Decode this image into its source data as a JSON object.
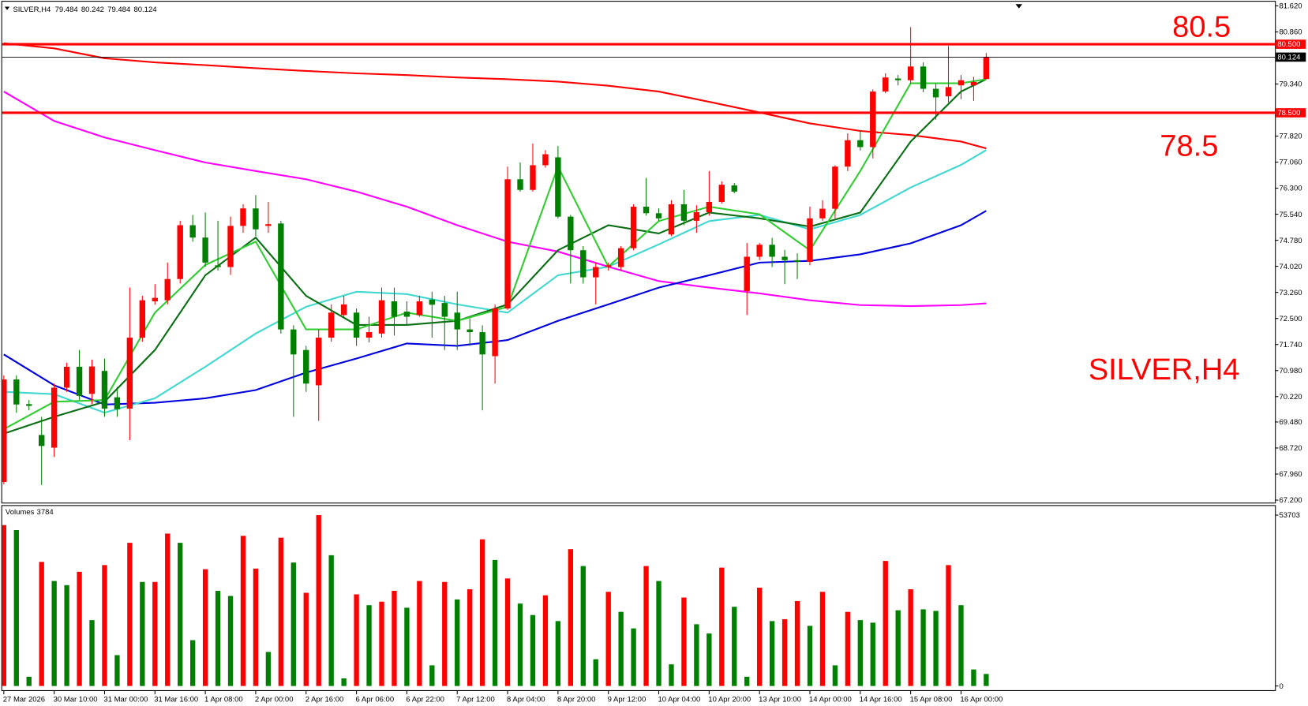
{
  "chart_data": {
    "type": "candlestick",
    "symbol": "SILVER,H4",
    "categories": [
      "27 Mar 2026",
      null,
      null,
      null,
      "30 Mar 10:00",
      null,
      null,
      null,
      "31 Mar 00:00",
      null,
      null,
      null,
      "31 Mar 16:00",
      null,
      null,
      null,
      "1 Apr 08:00",
      null,
      null,
      null,
      "2 Apr 00:00",
      null,
      null,
      null,
      "2 Apr 16:00",
      null,
      null,
      null,
      "6 Apr 06:00",
      null,
      null,
      null,
      "6 Apr 22:00",
      null,
      null,
      null,
      "7 Apr 12:00",
      null,
      null,
      null,
      "8 Apr 04:00",
      null,
      null,
      null,
      "8 Apr 20:00",
      null,
      null,
      null,
      "9 Apr 12:00",
      null,
      null,
      null,
      "10 Apr 04:00",
      null,
      null,
      null,
      "10 Apr 20:00",
      null,
      null,
      null,
      "13 Apr 10:00",
      null,
      null,
      null,
      "14 Apr 00:00",
      null,
      null,
      null,
      "14 Apr 16:00",
      null,
      null,
      null,
      "15 Apr 08:00",
      null,
      null,
      null,
      "16 Apr 00:00",
      null,
      null
    ],
    "open": [
      67.73,
      70.72,
      70.0,
      69.1,
      68.73,
      70.48,
      71.09,
      70.3,
      70.97,
      70.2,
      69.87,
      71.94,
      73.0,
      73.03,
      73.65,
      75.22,
      74.86,
      74.05,
      74.0,
      75.2,
      75.71,
      75.2,
      75.27,
      72.18,
      71.58,
      70.55,
      71.94,
      72.6,
      72.67,
      71.94,
      72.06,
      73.0,
      72.7,
      72.6,
      73.05,
      72.95,
      72.67,
      72.18,
      72.1,
      71.4,
      72.79,
      76.56,
      76.25,
      76.97,
      77.2,
      75.47,
      74.49,
      73.7,
      74.0,
      74.0,
      74.55,
      75.76,
      75.57,
      74.95,
      75.83,
      75.35,
      75.6,
      75.9,
      76.38,
      73.3,
      74.3,
      74.65,
      74.3,
      74.2,
      74.15,
      75.42,
      75.7,
      76.93,
      77.7,
      77.5,
      79.12,
      79.5,
      79.45,
      79.85,
      79.2,
      78.98,
      79.3,
      79.3,
      79.484
    ],
    "high": [
      70.84,
      70.84,
      70.12,
      69.63,
      70.6,
      71.21,
      71.58,
      71.3,
      71.33,
      70.5,
      73.4,
      73.16,
      73.5,
      74.13,
      75.35,
      75.52,
      75.59,
      75.35,
      75.47,
      75.83,
      76.1,
      75.9,
      75.35,
      72.3,
      71.7,
      72.18,
      72.91,
      73.16,
      72.79,
      72.55,
      73.4,
      73.4,
      73.0,
      73.16,
      73.28,
      73.16,
      73.28,
      72.5,
      72.3,
      72.91,
      76.93,
      77.05,
      77.6,
      77.41,
      77.53,
      75.52,
      74.61,
      74.13,
      74.13,
      74.61,
      75.83,
      76.6,
      75.71,
      75.95,
      76.25,
      75.8,
      76.8,
      76.5,
      76.45,
      74.7,
      74.7,
      74.85,
      74.5,
      74.4,
      75.76,
      75.95,
      76.97,
      77.9,
      78.0,
      79.18,
      79.65,
      79.6,
      81.0,
      79.97,
      79.35,
      80.45,
      79.6,
      79.55,
      80.242
    ],
    "low": [
      67.66,
      69.75,
      69.82,
      67.64,
      68.46,
      70.36,
      70.12,
      70.0,
      69.63,
      69.63,
      68.95,
      71.82,
      72.9,
      72.91,
      73.52,
      74.74,
      74.01,
      73.9,
      73.77,
      75.0,
      74.9,
      75.0,
      72.06,
      69.63,
      70.36,
      69.51,
      71.82,
      72.55,
      71.7,
      71.8,
      71.94,
      72.0,
      72.3,
      72.55,
      71.94,
      71.58,
      71.58,
      71.7,
      69.82,
      70.6,
      72.75,
      76.2,
      76.2,
      76.9,
      75.42,
      73.52,
      73.52,
      72.91,
      73.9,
      73.9,
      74.49,
      75.5,
      75.35,
      74.9,
      75.22,
      75.0,
      75.5,
      75.85,
      76.15,
      72.6,
      74.2,
      74.0,
      73.5,
      73.65,
      74.05,
      75.35,
      75.42,
      76.8,
      77.4,
      77.17,
      79.07,
      79.3,
      79.35,
      79.1,
      78.3,
      78.8,
      78.9,
      78.85,
      79.484
    ],
    "close": [
      70.72,
      69.99,
      69.95,
      68.78,
      70.48,
      71.09,
      70.24,
      71.1,
      69.87,
      69.85,
      71.94,
      73.03,
      73.1,
      73.65,
      75.22,
      74.86,
      74.13,
      74.0,
      75.2,
      75.71,
      75.1,
      75.25,
      72.18,
      71.45,
      70.6,
      71.94,
      72.67,
      72.91,
      71.94,
      72.1,
      73.03,
      72.55,
      72.55,
      73.0,
      72.9,
      72.55,
      72.18,
      72.1,
      71.45,
      72.79,
      76.56,
      76.25,
      76.97,
      77.29,
      75.47,
      74.49,
      73.7,
      74.0,
      74.05,
      74.55,
      75.76,
      75.57,
      75.42,
      75.83,
      75.35,
      75.6,
      75.9,
      76.4,
      76.2,
      74.3,
      74.65,
      74.3,
      74.2,
      74.15,
      75.42,
      75.7,
      76.93,
      77.7,
      77.5,
      79.12,
      79.53,
      79.45,
      79.85,
      79.2,
      78.95,
      79.25,
      79.45,
      79.4,
      80.124
    ],
    "up_color": "#ff0000",
    "down_color": "#008000",
    "ylim": [
      67.2,
      81.62
    ],
    "yticks": [
      {
        "value": 81.62,
        "label": "81.620"
      },
      {
        "value": 80.86,
        "label": "80.860"
      },
      {
        "value": 79.34,
        "label": "79.340"
      },
      {
        "value": 77.82,
        "label": "77.820"
      },
      {
        "value": 77.06,
        "label": "77.060"
      },
      {
        "value": 76.3,
        "label": "76.300"
      },
      {
        "value": 75.54,
        "label": "75.540"
      },
      {
        "value": 74.78,
        "label": "74.780"
      },
      {
        "value": 74.02,
        "label": "74.020"
      },
      {
        "value": 73.26,
        "label": "73.260"
      },
      {
        "value": 72.5,
        "label": "72.500"
      },
      {
        "value": 71.74,
        "label": "71.740"
      },
      {
        "value": 70.98,
        "label": "70.980"
      },
      {
        "value": 70.22,
        "label": "70.220"
      },
      {
        "value": 69.48,
        "label": "69.480"
      },
      {
        "value": 68.72,
        "label": "68.720"
      },
      {
        "value": 67.96,
        "label": "67.960"
      },
      {
        "value": 67.2,
        "label": "67.200"
      }
    ],
    "hlines": [
      {
        "value": 80.5,
        "label": "80.500",
        "color": "#ff0000"
      },
      {
        "value": 78.5,
        "label": "78.500",
        "color": "#ff0000"
      }
    ],
    "annotations": [
      "80.5",
      "78.5",
      "SILVER,H4"
    ],
    "ma_x": [
      0,
      4,
      8,
      12,
      16,
      20,
      24,
      28,
      32,
      36,
      40,
      44,
      48,
      52,
      56,
      60,
      64,
      68,
      72,
      76,
      78
    ],
    "ma": [
      {
        "color": "#ff0000",
        "values": [
          80.53,
          80.38,
          80.09,
          79.97,
          79.89,
          79.8,
          79.72,
          79.65,
          79.6,
          79.53,
          79.48,
          79.41,
          79.29,
          79.12,
          78.82,
          78.51,
          78.19,
          77.97,
          77.85,
          77.66,
          77.46
        ]
      },
      {
        "color": "#ff00ff",
        "values": [
          79.12,
          78.26,
          77.78,
          77.41,
          77.05,
          76.8,
          76.56,
          76.2,
          75.76,
          75.22,
          74.74,
          74.45,
          74.01,
          73.59,
          73.4,
          73.23,
          73.03,
          72.89,
          72.86,
          72.89,
          72.94
        ]
      },
      {
        "color": "#0000dd",
        "values": [
          71.45,
          70.55,
          69.99,
          70.04,
          70.17,
          70.41,
          70.92,
          71.33,
          71.77,
          71.7,
          71.87,
          72.43,
          72.91,
          73.4,
          73.76,
          74.13,
          74.18,
          74.37,
          74.69,
          75.22,
          75.64
        ]
      },
      {
        "color": "#40d8d0",
        "values": [
          70.36,
          70.29,
          69.75,
          70.17,
          71.09,
          72.06,
          72.84,
          73.28,
          73.21,
          72.91,
          72.67,
          73.76,
          74.01,
          74.66,
          75.34,
          75.52,
          75.1,
          75.52,
          76.32,
          76.98,
          77.41
        ]
      },
      {
        "color": "#0a6e14",
        "values": [
          69.14,
          69.63,
          70.07,
          71.58,
          73.76,
          74.86,
          73.16,
          72.31,
          72.31,
          72.43,
          72.91,
          74.49,
          75.22,
          74.98,
          75.59,
          75.42,
          75.18,
          75.59,
          77.66,
          79.12,
          79.48
        ]
      },
      {
        "color": "#32cd32",
        "values": [
          69.27,
          70.07,
          70.12,
          72.67,
          74.06,
          74.74,
          72.18,
          72.18,
          72.67,
          72.43,
          72.84,
          76.93,
          74.01,
          75.34,
          75.76,
          75.54,
          74.49,
          76.8,
          79.36,
          79.36,
          79.48
        ]
      }
    ],
    "volume_label": "Volumes",
    "volumes": [
      50560,
      49000,
      2900,
      39000,
      33000,
      31700,
      35900,
      20700,
      38000,
      9700,
      45000,
      32700,
      32700,
      47900,
      45000,
      14400,
      36700,
      29900,
      28300,
      47200,
      36900,
      10700,
      46600,
      38800,
      29300,
      53700,
      41100,
      2400,
      28800,
      25400,
      26500,
      29900,
      24600,
      33000,
      6500,
      32700,
      27200,
      30400,
      46100,
      39600,
      33800,
      25900,
      22300,
      28500,
      20400,
      43000,
      37700,
      8400,
      29600,
      23300,
      18100,
      37700,
      33000,
      6800,
      27800,
      19400,
      16500,
      37200,
      24900,
      2900,
      30900,
      20400,
      21000,
      26700,
      18900,
      29600,
      6500,
      23300,
      20700,
      19900,
      39300,
      23800,
      30400,
      24100,
      23600,
      38000,
      25400,
      5200,
      3784
    ],
    "volume_colors": [
      "#ff0000",
      "#008000",
      "#008000",
      "#ff0000",
      "#008000",
      "#008000",
      "#ff0000",
      "#008000",
      "#ff0000",
      "#008000",
      "#ff0000",
      "#008000",
      "#ff0000",
      "#ff0000",
      "#008000",
      "#008000",
      "#ff0000",
      "#008000",
      "#008000",
      "#ff0000",
      "#ff0000",
      "#008000",
      "#ff0000",
      "#008000",
      "#ff0000",
      "#ff0000",
      "#008000",
      "#008000",
      "#ff0000",
      "#008000",
      "#ff0000",
      "#ff0000",
      "#008000",
      "#ff0000",
      "#008000",
      "#ff0000",
      "#008000",
      "#ff0000",
      "#ff0000",
      "#008000",
      "#ff0000",
      "#008000",
      "#008000",
      "#ff0000",
      "#008000",
      "#ff0000",
      "#008000",
      "#008000",
      "#ff0000",
      "#008000",
      "#008000",
      "#ff0000",
      "#008000",
      "#008000",
      "#ff0000",
      "#008000",
      "#008000",
      "#ff0000",
      "#008000",
      "#008000",
      "#ff0000",
      "#008000",
      "#ff0000",
      "#ff0000",
      "#008000",
      "#ff0000",
      "#008000",
      "#ff0000",
      "#008000",
      "#008000",
      "#ff0000",
      "#008000",
      "#ff0000",
      "#008000",
      "#008000",
      "#ff0000",
      "#008000",
      "#008000",
      "#008000"
    ],
    "vlim": [
      0,
      53703
    ],
    "vticks": [
      0,
      53703
    ]
  }
}
